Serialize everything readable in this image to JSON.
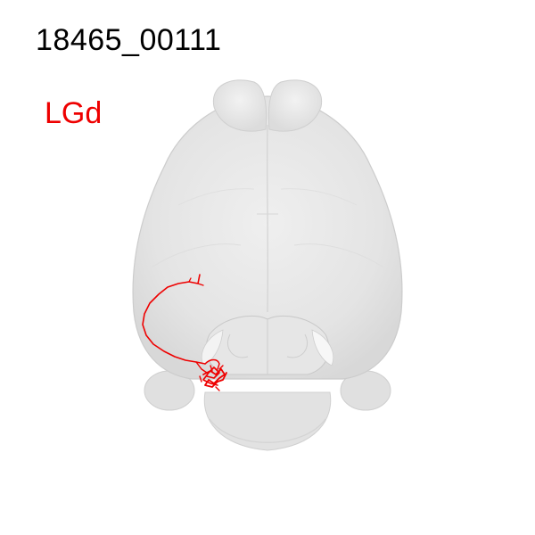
{
  "figure": {
    "specimen_id": "18465_00111",
    "region_label": "LGd",
    "region_label_color": "#ee0000",
    "neuron_trace_color": "#ee0000",
    "brain_shell_color": "#e6e6e6",
    "brain_outline_color": "#cfcfcf"
  }
}
